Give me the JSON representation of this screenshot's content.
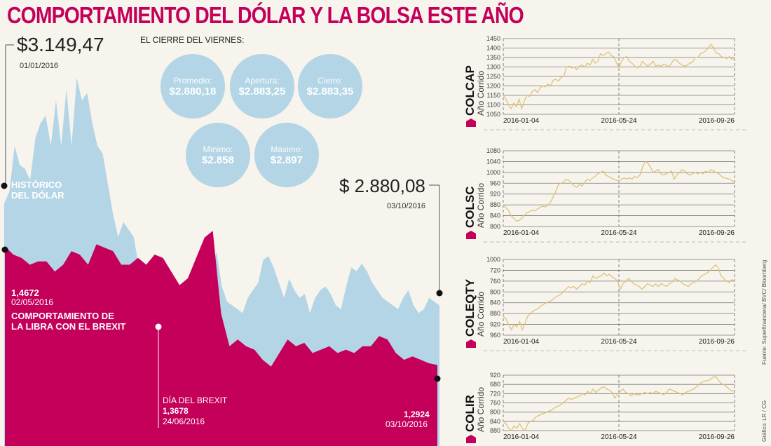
{
  "title": "COMPORTAMIENTO DEL DÓLAR Y LA BOLSA ESTE AÑO",
  "dollar": {
    "start_value": "$3.149,47",
    "start_date": "01/01/2016",
    "end_value": "$ 2.880,08",
    "end_date": "03/10/2016",
    "label_line1": "HISTÓRICO",
    "label_line2": "DEL DÓLAR"
  },
  "friday_close": {
    "heading": "EL CIERRE DEL VIERNES:",
    "stats": [
      {
        "label": "Promedio:",
        "value": "$2.880,18"
      },
      {
        "label": "Apertura:",
        "value": "$2.883,25"
      },
      {
        "label": "Cierre:",
        "value": "$2.883,35"
      },
      {
        "label": "Mínimo:",
        "value": "$2.858"
      },
      {
        "label": "Máximo:",
        "value": "$2.897"
      }
    ]
  },
  "pound": {
    "start_value": "1,4672",
    "start_date": "02/05/2016",
    "label_line1": "COMPORTAMIENTO DE",
    "label_line2": "LA LIBRA CON EL BREXIT",
    "brexit_label": "DÍA DEL BREXIT",
    "brexit_value": "1,3678",
    "brexit_date": "24/06/2016",
    "end_value": "1,2924",
    "end_date": "03/10/2016"
  },
  "colors": {
    "dollar_area": "#b3d5e6",
    "pound_area": "#c4005a",
    "line": "#e0c27a",
    "title": "#c4005a",
    "background": "#f6f4ec"
  },
  "credits": {
    "source": "Fuente: Superfinanciera/ BVC/ Bloomberg",
    "graphic": "Gráfico: LR / CG"
  },
  "chart_data": [
    {
      "type": "area",
      "title": "Histórico del dólar (COP)",
      "x": [
        "2016-01-01",
        "2016-10-03"
      ],
      "series": [
        {
          "name": "Dólar",
          "start": 3149.47,
          "end": 2880.08,
          "values": [
            3149,
            3180,
            3300,
            3250,
            3240,
            3210,
            3320,
            3360,
            3380,
            3300,
            3420,
            3300,
            3450,
            3300,
            3480,
            3420,
            3440,
            3360,
            3300,
            3280,
            3200,
            3120,
            3060,
            3100,
            3080,
            3060,
            2980,
            2990,
            2960,
            2960,
            3010,
            3000,
            2950,
            2900,
            2890,
            2880,
            2870,
            2910,
            2980,
            3000,
            2990,
            3020,
            2930,
            2890,
            2880,
            2870,
            2860,
            2900,
            2920,
            2940,
            3000,
            3010,
            2980,
            2940,
            2900,
            2950,
            2920,
            2900,
            2910,
            2860,
            2900,
            2920,
            2930,
            2910,
            2880,
            2870,
            2930,
            2980,
            2970,
            2990,
            2970,
            2940,
            2920,
            2900,
            2890,
            2880,
            2870,
            2900,
            2920,
            2880,
            2860,
            2870,
            2900,
            2890,
            2880
          ]
        }
      ]
    },
    {
      "type": "area",
      "title": "Comportamiento de la libra con el Brexit (USD)",
      "x": [
        "2016-05-02",
        "2016-06-24",
        "2016-10-03"
      ],
      "series": [
        {
          "name": "Libra",
          "start": 1.4672,
          "brexit": 1.3678,
          "end": 1.2924,
          "values": [
            1.4672,
            1.455,
            1.45,
            1.44,
            1.445,
            1.445,
            1.43,
            1.44,
            1.46,
            1.455,
            1.44,
            1.47,
            1.465,
            1.46,
            1.44,
            1.44,
            1.45,
            1.44,
            1.455,
            1.45,
            1.43,
            1.41,
            1.42,
            1.45,
            1.48,
            1.49,
            1.3678,
            1.32,
            1.33,
            1.32,
            1.315,
            1.3,
            1.29,
            1.31,
            1.33,
            1.32,
            1.325,
            1.31,
            1.315,
            1.32,
            1.31,
            1.315,
            1.31,
            1.32,
            1.32,
            1.335,
            1.33,
            1.31,
            1.3,
            1.305,
            1.3,
            1.295,
            1.2924
          ]
        }
      ]
    },
    {
      "type": "line",
      "name": "COLCAP",
      "subtitle": "Año Corrido",
      "yticks": [
        1050,
        1100,
        1150,
        1200,
        1250,
        1300,
        1350,
        1400,
        1450
      ],
      "ylim": [
        1050,
        1450
      ],
      "xticks": [
        "2016-01-04",
        "2016-05-24",
        "2016-09-26"
      ],
      "values": [
        1150,
        1130,
        1100,
        1080,
        1110,
        1090,
        1130,
        1080,
        1120,
        1150,
        1145,
        1170,
        1180,
        1165,
        1190,
        1200,
        1195,
        1210,
        1200,
        1230,
        1235,
        1225,
        1245,
        1250,
        1300,
        1305,
        1295,
        1300,
        1285,
        1305,
        1310,
        1300,
        1320,
        1310,
        1340,
        1320,
        1330,
        1370,
        1360,
        1370,
        1380,
        1360,
        1355,
        1325,
        1295,
        1330,
        1350,
        1355,
        1330,
        1320,
        1305,
        1295,
        1305,
        1330,
        1315,
        1305,
        1315,
        1330,
        1305,
        1310,
        1305,
        1315,
        1310,
        1300,
        1320,
        1340,
        1335,
        1320,
        1310,
        1305,
        1310,
        1320,
        1325,
        1350,
        1350,
        1370,
        1375,
        1385,
        1400,
        1420,
        1400,
        1375,
        1370,
        1355,
        1350,
        1345,
        1355,
        1340,
        1350
      ]
    },
    {
      "type": "line",
      "name": "COLSC",
      "subtitle": "Año Corrido",
      "yticks": [
        800,
        840,
        880,
        920,
        960,
        1000,
        1040,
        1080
      ],
      "ylim": [
        800,
        1080
      ],
      "xticks": [
        "2016-01-04",
        "2016-05-24",
        "2016-09-26"
      ],
      "values": [
        880,
        870,
        860,
        840,
        830,
        820,
        822,
        830,
        840,
        850,
        855,
        860,
        858,
        865,
        870,
        875,
        872,
        880,
        890,
        910,
        930,
        955,
        960,
        965,
        975,
        970,
        960,
        950,
        945,
        955,
        950,
        965,
        975,
        970,
        980,
        985,
        995,
        1000,
        1005,
        990,
        985,
        980,
        975,
        970,
        970,
        975,
        980,
        975,
        980,
        975,
        985,
        980,
        990,
        1020,
        1040,
        1035,
        1020,
        1000,
        1005,
        1010,
        995,
        990,
        995,
        1000,
        1005,
        975,
        990,
        1000,
        1010,
        1005,
        995,
        990,
        995,
        1000,
        995,
        1000,
        995,
        1005,
        1000,
        1010,
        1005,
        1000,
        995,
        985,
        980,
        978,
        975,
        970,
        965
      ]
    },
    {
      "type": "line",
      "name": "COLEQTY",
      "subtitle": "Año Corrido",
      "yticks": [
        960,
        920,
        880,
        840,
        800,
        760,
        720,
        1000
      ],
      "ylim": [
        960,
        680
      ],
      "xticks": [
        "2016-01-04",
        "2016-05-24",
        "2016-09-26"
      ],
      "values": [
        890,
        900,
        920,
        940,
        920,
        930,
        910,
        940,
        915,
        890,
        880,
        870,
        865,
        860,
        850,
        845,
        840,
        835,
        830,
        820,
        815,
        810,
        800,
        790,
        780,
        785,
        780,
        790,
        780,
        770,
        775,
        760,
        765,
        740,
        750,
        745,
        740,
        730,
        740,
        735,
        745,
        750,
        760,
        790,
        770,
        760,
        750,
        760,
        770,
        775,
        780,
        790,
        780,
        770,
        775,
        780,
        770,
        780,
        770,
        775,
        780,
        770,
        765,
        750,
        755,
        760,
        770,
        775,
        780,
        770,
        765,
        760,
        750,
        740,
        735,
        730,
        720,
        710,
        700,
        710,
        740,
        750,
        760,
        765,
        755,
        760
      ]
    },
    {
      "type": "line",
      "name": "COLIR",
      "subtitle": "Año Corrido",
      "yticks": [
        880,
        840,
        800,
        760,
        720,
        680,
        920
      ],
      "ylim": [
        880,
        640
      ],
      "xticks": [
        "2016-01-04",
        "2016-05-24",
        "2016-09-26"
      ],
      "values": [
        840,
        850,
        870,
        880,
        860,
        870,
        850,
        870,
        880,
        850,
        840,
        835,
        820,
        815,
        810,
        805,
        800,
        795,
        790,
        780,
        775,
        770,
        760,
        750,
        740,
        745,
        740,
        735,
        730,
        720,
        725,
        710,
        720,
        700,
        715,
        705,
        695,
        690,
        700,
        705,
        715,
        740,
        720,
        710,
        700,
        715,
        720,
        730,
        720,
        725,
        725,
        720,
        715,
        720,
        715,
        720,
        710,
        715,
        720,
        725,
        715,
        700,
        705,
        710,
        715,
        720,
        725,
        715,
        710,
        705,
        700,
        690,
        680,
        670,
        665,
        665,
        660,
        650,
        645,
        660,
        675,
        680,
        690,
        700,
        710,
        705
      ]
    }
  ]
}
